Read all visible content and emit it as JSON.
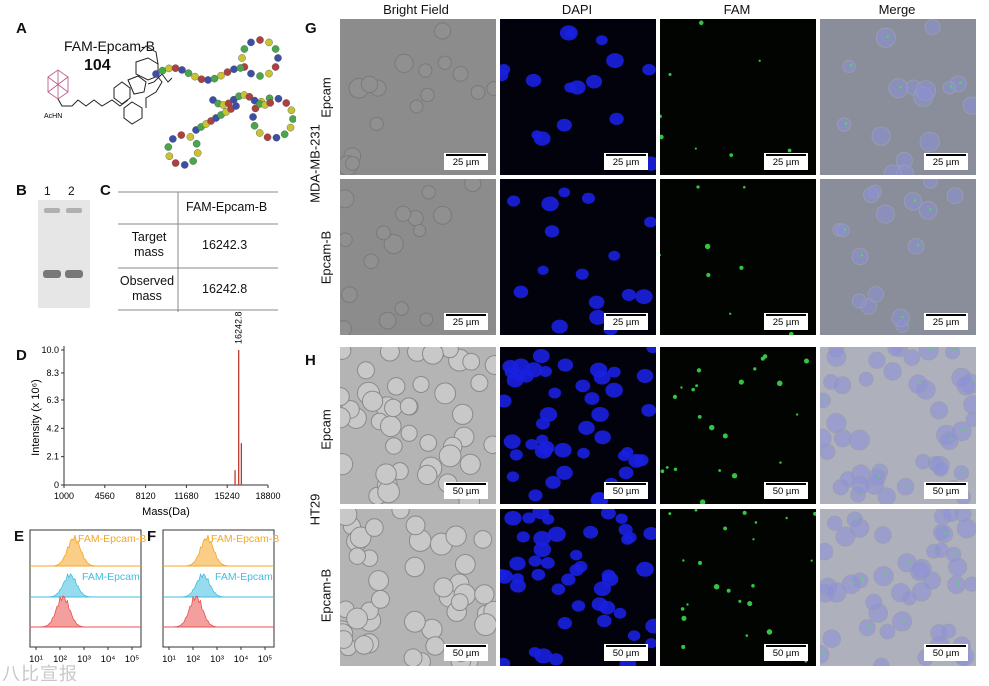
{
  "panels": {
    "A": "A",
    "B": "B",
    "C": "C",
    "D": "D",
    "E": "E",
    "F": "F",
    "G": "G",
    "H": "H"
  },
  "panelA": {
    "name": "FAM-Epcam-B",
    "number": "104",
    "acnh": "AcHN"
  },
  "panelB": {
    "lanes": [
      "1",
      "2"
    ]
  },
  "panelC": {
    "header": "FAM-Epcam-B",
    "rows": [
      {
        "label": [
          "Target",
          "mass"
        ],
        "value": "16242.3"
      },
      {
        "label": [
          "Observed",
          "mass"
        ],
        "value": "16242.8"
      }
    ]
  },
  "chart_data": [
    {
      "type": "line",
      "panel": "D",
      "peak_label": "16242.8",
      "xlabel": "Mass(Da)",
      "ylabel": "Intensity (x 10⁶)",
      "x_ticks": [
        "1000",
        "4560",
        "8120",
        "11680",
        "15240",
        "18800"
      ],
      "y_ticks": [
        "0",
        "2.1",
        "4.2",
        "6.3",
        "8.3",
        "10.0"
      ],
      "xlim": [
        1000,
        18800
      ],
      "ylim": [
        0,
        10.0
      ],
      "peaks": [
        {
          "x": 16242.8,
          "y": 10.0
        },
        {
          "x": 16300,
          "y": 3.1
        },
        {
          "x": 16100,
          "y": 1.1
        }
      ],
      "color": "#c0392b"
    },
    {
      "type": "area",
      "panel": "E",
      "series": [
        {
          "name": "FAM-Epcam-B",
          "color": "#f5a623"
        },
        {
          "name": "FAM-Epcam",
          "color": "#3fbfe0"
        },
        {
          "name": "",
          "color": "#e8504f"
        }
      ],
      "x_ticks": [
        "10¹",
        "10²",
        "10³",
        "10⁴",
        "10⁵"
      ]
    },
    {
      "type": "area",
      "panel": "F",
      "series": [
        {
          "name": "FAM-Epcam-B",
          "color": "#f5a623"
        },
        {
          "name": "FAM-Epcam",
          "color": "#3fbfe0"
        },
        {
          "name": "",
          "color": "#e8504f"
        }
      ],
      "x_ticks": [
        "10¹",
        "10²",
        "10³",
        "10⁴",
        "10⁵"
      ]
    }
  ],
  "panelG": {
    "cell_line": "MDA-MB-231",
    "rows": [
      "Epcam",
      "Epcam-B"
    ],
    "scale": "25 µm"
  },
  "panelH": {
    "cell_line": "HT29",
    "rows": [
      "Epcam",
      "Epcam-B"
    ],
    "scale": "50 µm"
  },
  "columns": [
    "Bright Field",
    "DAPI",
    "FAM",
    "Merge"
  ],
  "watermark": "八比宣报"
}
